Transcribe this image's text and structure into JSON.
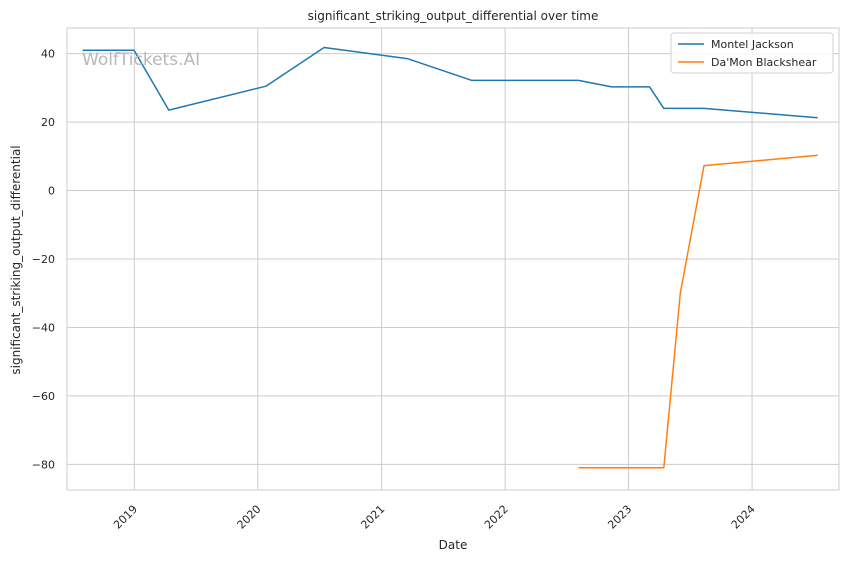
{
  "chart_data": {
    "type": "line",
    "title": "significant_striking_output_differential over time",
    "xlabel": "Date",
    "ylabel": "significant_striking_output_differential",
    "x_ticks": [
      "2019",
      "2020",
      "2021",
      "2022",
      "2023",
      "2024"
    ],
    "y_ticks": [
      40,
      20,
      0,
      -20,
      -40,
      -60,
      -80
    ],
    "y_tick_labels": [
      "40",
      "20",
      "0",
      "−20",
      "−40",
      "−60",
      "−80"
    ],
    "xlim": [
      "2018-06-16",
      "2024-09-14"
    ],
    "ylim": [
      -87.5,
      47.5
    ],
    "grid": true,
    "legend_position": "top-right",
    "watermark": "WolfTickets.AI",
    "series": [
      {
        "name": "Montel Jackson",
        "color": "#1f77b4",
        "points": [
          [
            "2018-08-01",
            41.0
          ],
          [
            "2018-10-15",
            41.0
          ],
          [
            "2018-12-31",
            41.0
          ],
          [
            "2019-04-13",
            23.5
          ],
          [
            "2020-01-25",
            30.5
          ],
          [
            "2020-07-15",
            41.8
          ],
          [
            "2021-03-20",
            38.5
          ],
          [
            "2021-09-25",
            32.2
          ],
          [
            "2022-08-06",
            32.2
          ],
          [
            "2022-11-12",
            30.3
          ],
          [
            "2023-03-04",
            30.3
          ],
          [
            "2023-04-15",
            24.0
          ],
          [
            "2023-08-12",
            24.0
          ],
          [
            "2024-07-13",
            21.3
          ]
        ]
      },
      {
        "name": "Da'Mon Blackshear",
        "color": "#ff7f0e",
        "points": [
          [
            "2022-08-06",
            -81.0
          ],
          [
            "2023-04-15",
            -81.0
          ],
          [
            "2023-06-03",
            -30.0
          ],
          [
            "2023-08-12",
            7.3
          ],
          [
            "2024-07-13",
            10.3
          ]
        ]
      }
    ]
  }
}
